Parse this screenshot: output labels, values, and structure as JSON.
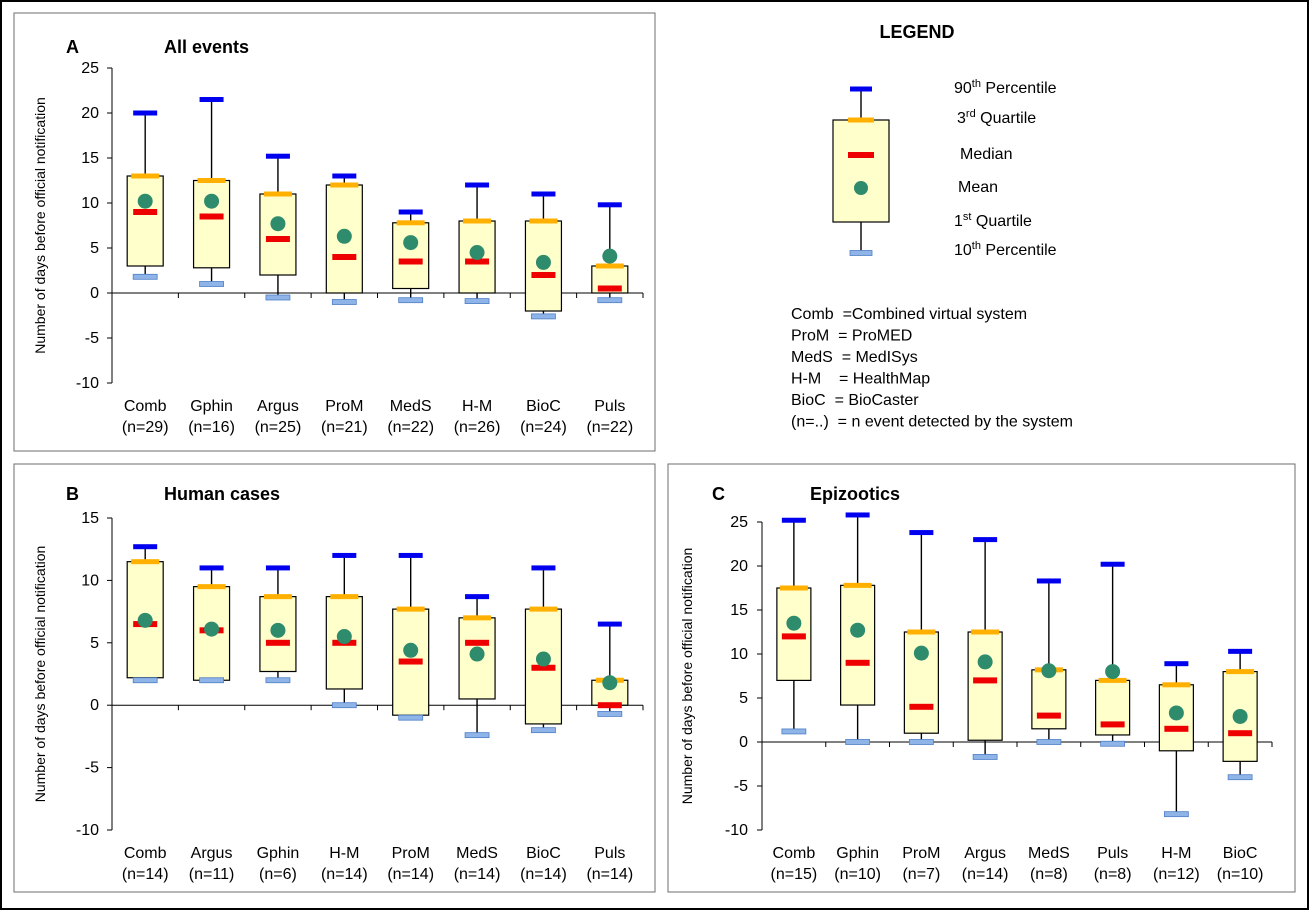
{
  "legend": {
    "title": "LEGEND",
    "items": [
      {
        "base": "90",
        "sup": "th",
        "rest": " Percentile"
      },
      {
        "base": "3",
        "sup": "rd",
        "rest": " Quartile"
      },
      {
        "base": "Median",
        "sup": "",
        "rest": ""
      },
      {
        "base": "Mean",
        "sup": "",
        "rest": ""
      },
      {
        "base": "1",
        "sup": "st",
        "rest": " Quartile"
      },
      {
        "base": "10",
        "sup": "th",
        "rest": " Percentile"
      }
    ],
    "abbreviations": [
      "Comb  =Combined virtual system",
      "ProM  = ProMED",
      "MedS  = MedISys",
      "H-M    = HealthMap",
      "BioC  = BioCaster",
      "(n=..)  = n event detected by the system"
    ],
    "colors": {
      "p90": "#0000ee",
      "q3": "#ffb000",
      "median": "#ee0000",
      "mean": "#2e8b6b",
      "p10": "#8fb4e8",
      "box": "#ffffcc"
    }
  },
  "chart_data": [
    {
      "type": "box",
      "panel": "A",
      "title": "All events",
      "ylabel": "Number of days before official notification",
      "ylim": [
        -10,
        25
      ],
      "yticks": [
        25,
        20,
        15,
        10,
        5,
        0,
        -5,
        -10
      ],
      "categories": [
        "Comb",
        "Gphin",
        "Argus",
        "ProM",
        "MedS",
        "H-M",
        "BioC",
        "Puls"
      ],
      "counts": [
        "(n=29)",
        "(n=16)",
        "(n=25)",
        "(n=21)",
        "(n=22)",
        "(n=26)",
        "(n=24)",
        "(n=22)"
      ],
      "p90": [
        20,
        21.5,
        15.2,
        13,
        9,
        12,
        11,
        9.8
      ],
      "q3": [
        13,
        12.5,
        11,
        12,
        7.8,
        8,
        8,
        3
      ],
      "median": [
        9,
        8.5,
        6,
        4,
        3.5,
        3.5,
        2,
        0.5
      ],
      "mean": [
        10.2,
        10.2,
        7.7,
        6.3,
        5.6,
        4.5,
        3.4,
        4.1
      ],
      "q1": [
        3,
        2.8,
        2,
        0,
        0.5,
        0,
        -2,
        0
      ],
      "p10": [
        1.8,
        1,
        -0.5,
        -1,
        -0.8,
        -0.9,
        -2.6,
        -0.8
      ]
    },
    {
      "type": "box",
      "panel": "B",
      "title": "Human cases",
      "ylabel": "Number of days before official notification",
      "ylim": [
        -10,
        15
      ],
      "yticks": [
        15,
        10,
        5,
        0,
        -5,
        -10
      ],
      "categories": [
        "Comb",
        "Argus",
        "Gphin",
        "H-M",
        "ProM",
        "MedS",
        "BioC",
        "Puls"
      ],
      "counts": [
        "(n=14)",
        "(n=11)",
        "(n=6)",
        "(n=14)",
        "(n=14)",
        "(n=14)",
        "(n=14)",
        "(n=14)"
      ],
      "p90": [
        12.7,
        11,
        11,
        12,
        12,
        8.7,
        11,
        6.5
      ],
      "q3": [
        11.5,
        9.5,
        8.7,
        8.7,
        7.7,
        7,
        7.7,
        2
      ],
      "median": [
        6.5,
        6,
        5,
        5,
        3.5,
        5,
        3,
        0
      ],
      "mean": [
        6.8,
        6.1,
        6,
        5.5,
        4.4,
        4.1,
        3.7,
        1.8
      ],
      "q1": [
        2.2,
        2,
        2.7,
        1.3,
        -0.8,
        0.5,
        -1.5,
        0
      ],
      "p10": [
        2,
        2,
        2,
        0,
        -1,
        -2.4,
        -2,
        -0.7
      ]
    },
    {
      "type": "box",
      "panel": "C",
      "title": "Epizootics",
      "ylabel": "Number of days before official notification",
      "ylim": [
        -10,
        25
      ],
      "yticks": [
        25,
        20,
        15,
        10,
        5,
        0,
        -5,
        -10
      ],
      "categories": [
        "Comb",
        "Gphin",
        "ProM",
        "Argus",
        "MedS",
        "Puls",
        "H-M",
        "BioC"
      ],
      "counts": [
        "(n=15)",
        "(n=10)",
        "(n=7)",
        "(n=14)",
        "(n=8)",
        "(n=8)",
        "(n=12)",
        "(n=10)"
      ],
      "p90": [
        25.2,
        25.8,
        23.8,
        23,
        18.3,
        20.2,
        8.9,
        10.3
      ],
      "q3": [
        17.5,
        17.8,
        12.5,
        12.5,
        8.2,
        7,
        6.5,
        8
      ],
      "median": [
        12,
        9,
        4,
        7,
        3,
        2,
        1.5,
        1
      ],
      "mean": [
        13.5,
        12.7,
        10.1,
        9.1,
        8.1,
        8,
        3.3,
        2.9
      ],
      "q1": [
        7,
        4.2,
        1,
        0.2,
        1.5,
        0.8,
        -1,
        -2.2
      ],
      "p10": [
        1.2,
        0,
        0,
        -1.7,
        0,
        -0.2,
        -8.2,
        -4
      ]
    }
  ]
}
